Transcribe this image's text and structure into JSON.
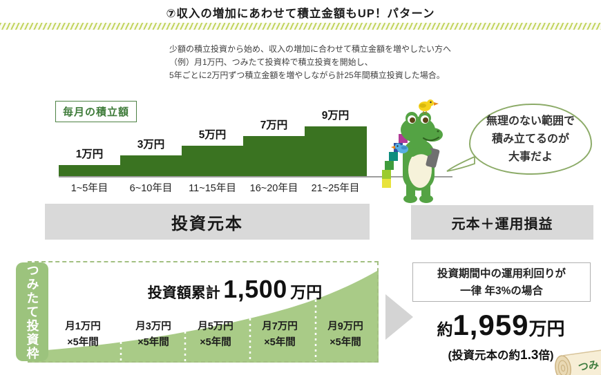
{
  "title": "⑦収入の増加にあわせて積立金額もUP！パターン",
  "description": {
    "line1": "少額の積立投資から始め、収入の増加に合わせて積立金額を増やしたい方へ",
    "line2": "（例）月1万円、つみたて投資枠で積立投資を開始し、",
    "line3": "5年ごとに2万円ずつ積立金額を増やしながら計25年間積立投資した場合。"
  },
  "chart_data": {
    "type": "bar",
    "title": "毎月の積立額",
    "categories": [
      "1~5年目",
      "6~10年目",
      "11~15年目",
      "16~20年目",
      "21~25年目"
    ],
    "values": [
      1,
      3,
      5,
      7,
      9
    ],
    "value_labels": [
      "1万円",
      "3万円",
      "5万円",
      "7万円",
      "9万円"
    ],
    "unit": "万円",
    "ylim": [
      0,
      9
    ],
    "layout": "step-bars ascending, baseline axis, no gridlines"
  },
  "speech_bubble": {
    "line1": "無理のない範囲で",
    "line2": "積み立てるのが",
    "line3": "大事だよ"
  },
  "bars": {
    "principal": "投資元本",
    "principal_plus_returns": "元本＋運用損益"
  },
  "accumulation": {
    "badge": "つみたて投資枠",
    "total_label": "投資額累計",
    "total_value": "1,500",
    "total_unit": "万円",
    "segments": [
      {
        "line1": "月1万円",
        "line2": "×5年間"
      },
      {
        "line1": "月3万円",
        "line2": "×5年間"
      },
      {
        "line1": "月5万円",
        "line2": "×5年間"
      },
      {
        "line1": "月7万円",
        "line2": "×5年間"
      },
      {
        "line1": "月9万円",
        "line2": "×5年間"
      }
    ]
  },
  "result": {
    "condition_line1": "投資期間中の運用利回りが",
    "condition_line2": "一律 年3%の場合",
    "approx_prefix": "約",
    "amount": "1,959",
    "amount_unit": "万円",
    "note_prefix": "(投資元本の約",
    "note_value": "1.3",
    "note_suffix": "倍)"
  },
  "decoration": {
    "scroll_text": "つみ"
  },
  "colors": {
    "step_green": "#3a7321",
    "curve_light_green": "#a9cb87",
    "badge_green": "#9cc37d",
    "stripe_green": "#c2d45f",
    "gray_bar": "#d9d9d9",
    "bubble_border": "#8cab68",
    "label_box_green": "#3e7b39"
  }
}
